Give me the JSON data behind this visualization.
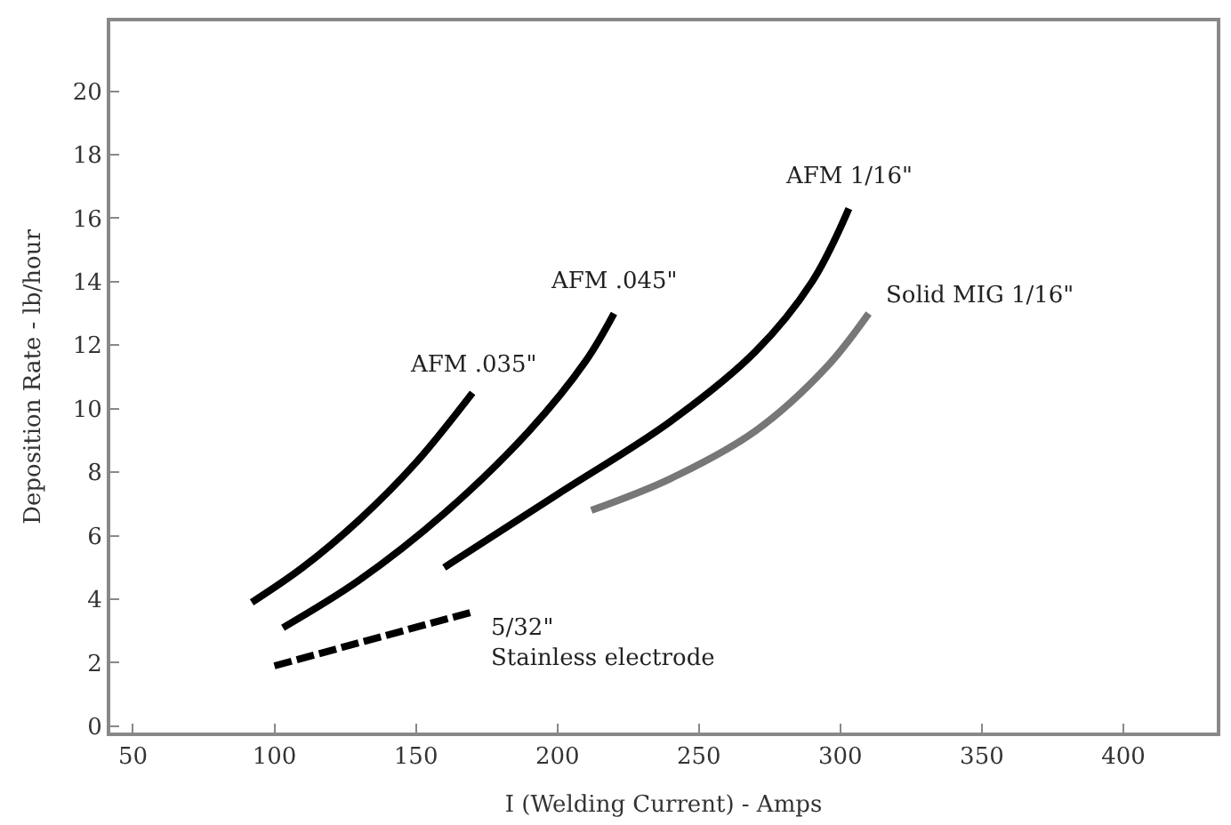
{
  "chart_data": {
    "type": "line",
    "xlabel": "I (Welding Current) - Amps",
    "ylabel": "Deposition Rate - lb/hour",
    "xlim": [
      42,
      433
    ],
    "ylim": [
      -0.2,
      22.2
    ],
    "xticks": [
      50,
      100,
      150,
      200,
      250,
      300,
      350,
      400
    ],
    "yticks": [
      0,
      2,
      4,
      6,
      8,
      10,
      12,
      14,
      16,
      18,
      20
    ],
    "grid": false,
    "legend": false,
    "marker": "none",
    "series": [
      {
        "name": "AFM .035\"",
        "color": "#000000",
        "x": [
          92,
          110,
          130,
          150,
          170
        ],
        "values": [
          3.9,
          5.0,
          6.5,
          8.3,
          10.5
        ]
      },
      {
        "name": "AFM .045\"",
        "color": "#000000",
        "x": [
          103,
          130,
          160,
          190,
          210,
          220
        ],
        "values": [
          3.1,
          4.6,
          6.7,
          9.3,
          11.5,
          13.0
        ]
      },
      {
        "name": "AFM 1/16\"",
        "color": "#000000",
        "x": [
          160,
          200,
          240,
          270,
          290,
          303
        ],
        "values": [
          5.0,
          7.3,
          9.6,
          11.8,
          14.0,
          16.3
        ]
      },
      {
        "name": "Solid MIG 1/16\"",
        "color": "#777777",
        "x": [
          212,
          240,
          270,
          295,
          310
        ],
        "values": [
          6.8,
          7.8,
          9.3,
          11.3,
          13.0
        ]
      },
      {
        "name": "5/32\"\nStainless electrode",
        "color": "#000000",
        "line_style": "dashed",
        "x": [
          100,
          170
        ],
        "values": [
          1.9,
          3.6
        ]
      }
    ]
  }
}
